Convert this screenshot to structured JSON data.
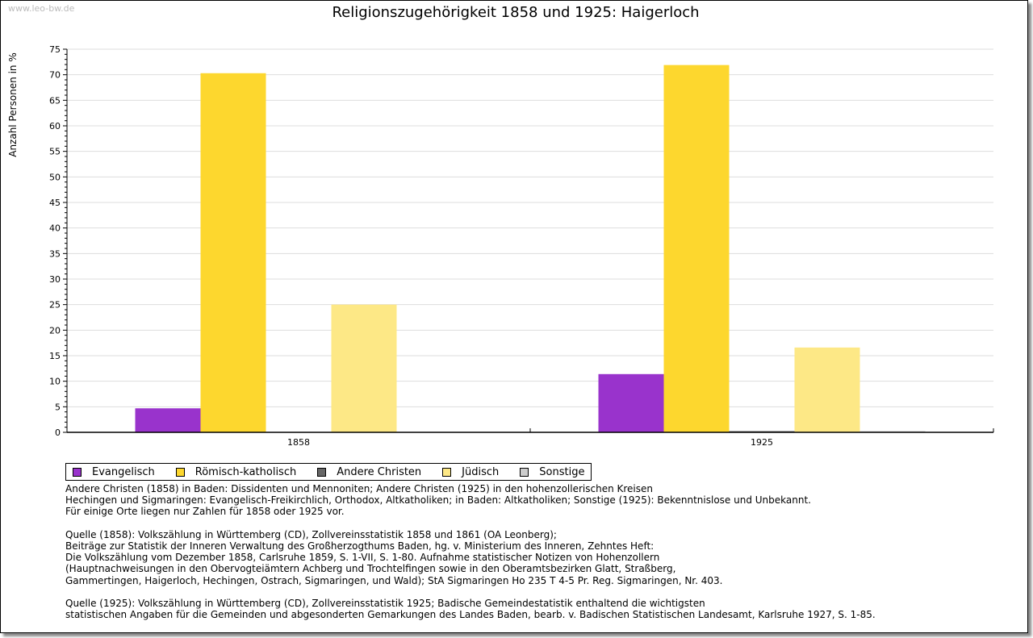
{
  "watermark": "www.leo-bw.de",
  "chart_data": {
    "type": "bar",
    "title": "Religionszugehörigkeit 1858 und 1925: Haigerloch",
    "ylabel": "Anzahl Personen in %",
    "xlabel": "",
    "ylim": [
      0,
      75
    ],
    "yticks": [
      0,
      5,
      10,
      15,
      20,
      25,
      30,
      35,
      40,
      45,
      50,
      55,
      60,
      65,
      70,
      75
    ],
    "grid": true,
    "legend_position": "bottom",
    "categories": [
      "1858",
      "1925"
    ],
    "series": [
      {
        "name": "Evangelisch",
        "color": "#9933cc",
        "values": [
          4.7,
          11.4
        ]
      },
      {
        "name": "Römisch-katholisch",
        "color": "#fdd72e",
        "values": [
          70.3,
          71.9
        ]
      },
      {
        "name": "Andere Christen",
        "color": "#666666",
        "values": [
          0,
          0.1
        ]
      },
      {
        "name": "Jüdisch",
        "color": "#fde886",
        "values": [
          25.0,
          16.6
        ]
      },
      {
        "name": "Sonstige",
        "color": "#cccccc",
        "values": [
          0,
          0.1
        ]
      }
    ]
  },
  "notes": [
    "Andere Christen (1858) in Baden: Dissidenten und Mennoniten; Andere Christen (1925) in den hohenzollerischen Kreisen",
    "Hechingen und Sigmaringen: Evangelisch-Freikirchlich, Orthodox, Altkatholiken; in Baden: Altkatholiken; Sonstige (1925): Bekenntnislose und Unbekannt.",
    "Für einige Orte liegen nur Zahlen für 1858 oder 1925 vor.",
    "",
    "Quelle (1858): Volkszählung in Württemberg (CD), Zollvereinsstatistik 1858 und 1861 (OA Leonberg);",
    "Beiträge zur Statistik der Inneren Verwaltung des Großherzogthums Baden, hg. v. Ministerium des Inneren, Zehntes Heft:",
    "Die Volkszählung vom Dezember 1858, Carlsruhe 1859, S. 1-VII, S. 1-80. Aufnahme statistischer Notizen von Hohenzollern",
    "(Hauptnachweisungen in den Obervogteiämtern Achberg und Trochtelfingen sowie in den Oberamtsbezirken Glatt, Straßberg,",
    "Gammertingen, Haigerloch, Hechingen, Ostrach, Sigmaringen, und Wald); StA Sigmaringen Ho 235 T 4-5 Pr. Reg. Sigmaringen, Nr. 403.",
    "",
    "Quelle (1925): Volkszählung in Württemberg (CD), Zollvereinsstatistik 1925; Badische Gemeindestatistik enthaltend die wichtigsten",
    "statistischen Angaben für die Gemeinden und abgesonderten Gemarkungen des Landes Baden, bearb. v. Badischen Statistischen Landesamt, Karlsruhe 1927, S. 1-85."
  ]
}
